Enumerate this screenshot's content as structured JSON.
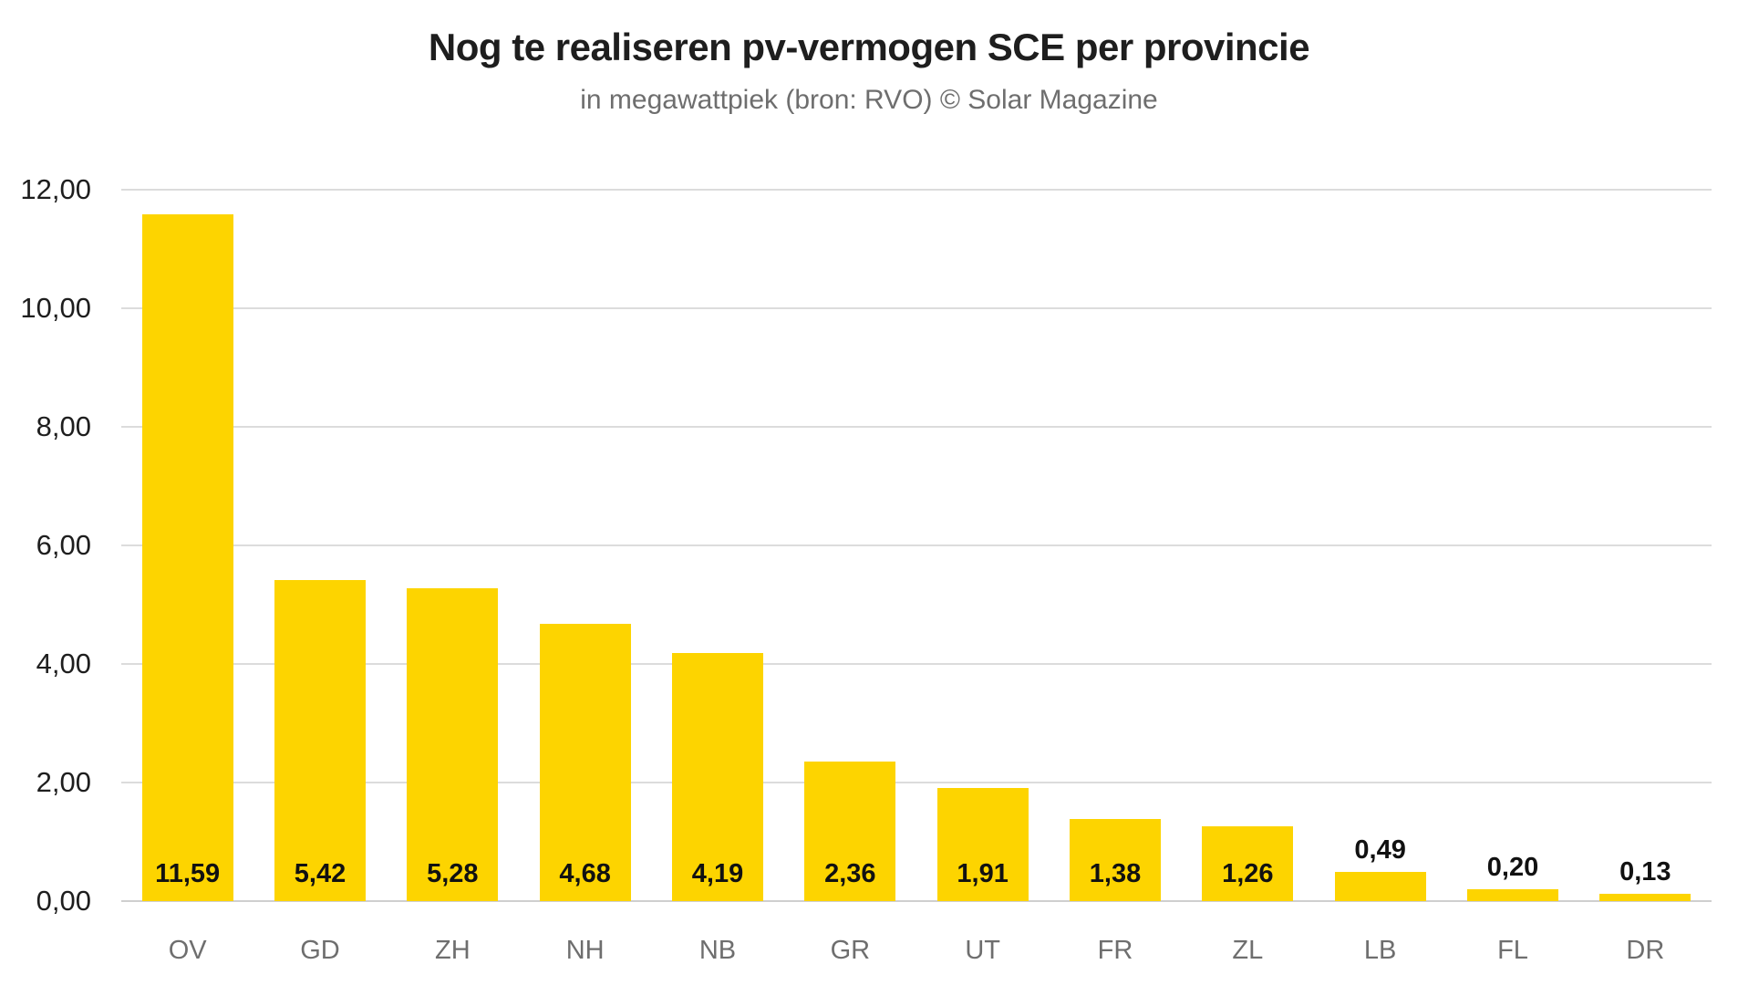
{
  "chart_data": {
    "type": "bar",
    "title": "Nog te realiseren pv-vermogen SCE per provincie",
    "subtitle": "in megawattpiek (bron: RVO) © Solar Magazine",
    "categories": [
      "OV",
      "GD",
      "ZH",
      "NH",
      "NB",
      "GR",
      "UT",
      "FR",
      "ZL",
      "LB",
      "FL",
      "DR"
    ],
    "values": [
      11.59,
      5.42,
      5.28,
      4.68,
      4.19,
      2.36,
      1.91,
      1.38,
      1.26,
      0.49,
      0.2,
      0.13
    ],
    "value_labels": [
      "11,59",
      "5,42",
      "5,28",
      "4,68",
      "4,19",
      "2,36",
      "1,91",
      "1,38",
      "1,26",
      "0,49",
      "0,20",
      "0,13"
    ],
    "ylabel": "",
    "xlabel": "",
    "ylim": [
      0,
      12
    ],
    "ytick_values": [
      0,
      2,
      4,
      6,
      8,
      10,
      12
    ],
    "ytick_labels": [
      "0,00",
      "2,00",
      "4,00",
      "6,00",
      "8,00",
      "10,00",
      "12,00"
    ],
    "grid": "horizontal",
    "legend": "none",
    "colors": {
      "bar": "#fdd400",
      "gridline": "#dcdcdc",
      "baseline": "#cfcfcf",
      "title": "#1e1e1e",
      "subtitle": "#6e6e6e",
      "ytick": "#1e1e1e",
      "xtick": "#6e6e6e",
      "value_label": "#111111",
      "background": "#ffffff"
    }
  }
}
